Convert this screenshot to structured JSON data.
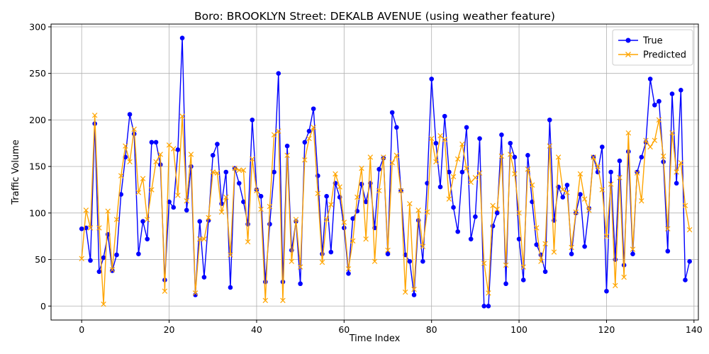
{
  "chart_data": {
    "type": "line",
    "title": "Boro: BROOKLYN Street: DEKALB AVENUE (using weather feature)",
    "xlabel": "Time Index",
    "ylabel": "Traffic Volume",
    "xlim": [
      -7,
      141
    ],
    "ylim": [
      -15,
      303
    ],
    "xticks": [
      0,
      20,
      40,
      60,
      80,
      100,
      120,
      140
    ],
    "yticks": [
      0,
      50,
      100,
      150,
      200,
      250,
      300
    ],
    "grid": true,
    "legend_position": "top-right",
    "series": [
      {
        "name": "True",
        "color": "#0000ff",
        "marker": "circle",
        "values": [
          83,
          84,
          49,
          196,
          37,
          52,
          77,
          38,
          55,
          120,
          160,
          206,
          185,
          56,
          91,
          72,
          176,
          176,
          152,
          28,
          112,
          106,
          168,
          288,
          103,
          150,
          12,
          91,
          31,
          92,
          162,
          174,
          110,
          144,
          20,
          148,
          132,
          112,
          88,
          200,
          125,
          118,
          26,
          88,
          144,
          250,
          26,
          172,
          60,
          91,
          24,
          176,
          188,
          212,
          140,
          56,
          118,
          58,
          132,
          117,
          84,
          35,
          94,
          102,
          131,
          112,
          132,
          84,
          147,
          159,
          56,
          208,
          192,
          124,
          55,
          48,
          12,
          92,
          48,
          132,
          244,
          175,
          128,
          204,
          144,
          106,
          80,
          144,
          192,
          72,
          96,
          180,
          0,
          0,
          86,
          100,
          184,
          24,
          175,
          160,
          72,
          28,
          162,
          112,
          66,
          55,
          37,
          200,
          92,
          128,
          117,
          130,
          56,
          100,
          120,
          64,
          105,
          160,
          144,
          171,
          16,
          144,
          50,
          156,
          44,
          166,
          56,
          144,
          160,
          176,
          244,
          216,
          220,
          155,
          59,
          228,
          132,
          232,
          28,
          48
        ]
      },
      {
        "name": "Predicted",
        "color": "#ffa500",
        "marker": "x",
        "values": [
          51,
          103,
          84,
          205,
          84,
          2,
          102,
          39,
          93,
          140,
          172,
          155,
          190,
          122,
          137,
          93,
          125,
          155,
          163,
          16,
          173,
          169,
          119,
          204,
          113,
          163,
          14,
          72,
          72,
          95,
          144,
          143,
          101,
          117,
          55,
          148,
          146,
          146,
          69,
          158,
          124,
          104,
          6,
          107,
          184,
          188,
          6,
          162,
          48,
          93,
          42,
          157,
          180,
          192,
          121,
          47,
          93,
          109,
          142,
          128,
          90,
          40,
          70,
          117,
          148,
          72,
          160,
          48,
          124,
          160,
          60,
          154,
          162,
          124,
          15,
          110,
          18,
          103,
          64,
          101,
          180,
          155,
          183,
          179,
          115,
          139,
          158,
          174,
          148,
          133,
          138,
          143,
          46,
          14,
          108,
          104,
          161,
          44,
          163,
          142,
          100,
          42,
          147,
          130,
          84,
          48,
          67,
          172,
          58,
          160,
          125,
          122,
          63,
          101,
          142,
          115,
          103,
          160,
          150,
          125,
          75,
          131,
          22,
          138,
          31,
          186,
          61,
          143,
          113,
          178,
          171,
          178,
          200,
          161,
          83,
          186,
          144,
          154,
          108,
          82
        ]
      }
    ]
  }
}
